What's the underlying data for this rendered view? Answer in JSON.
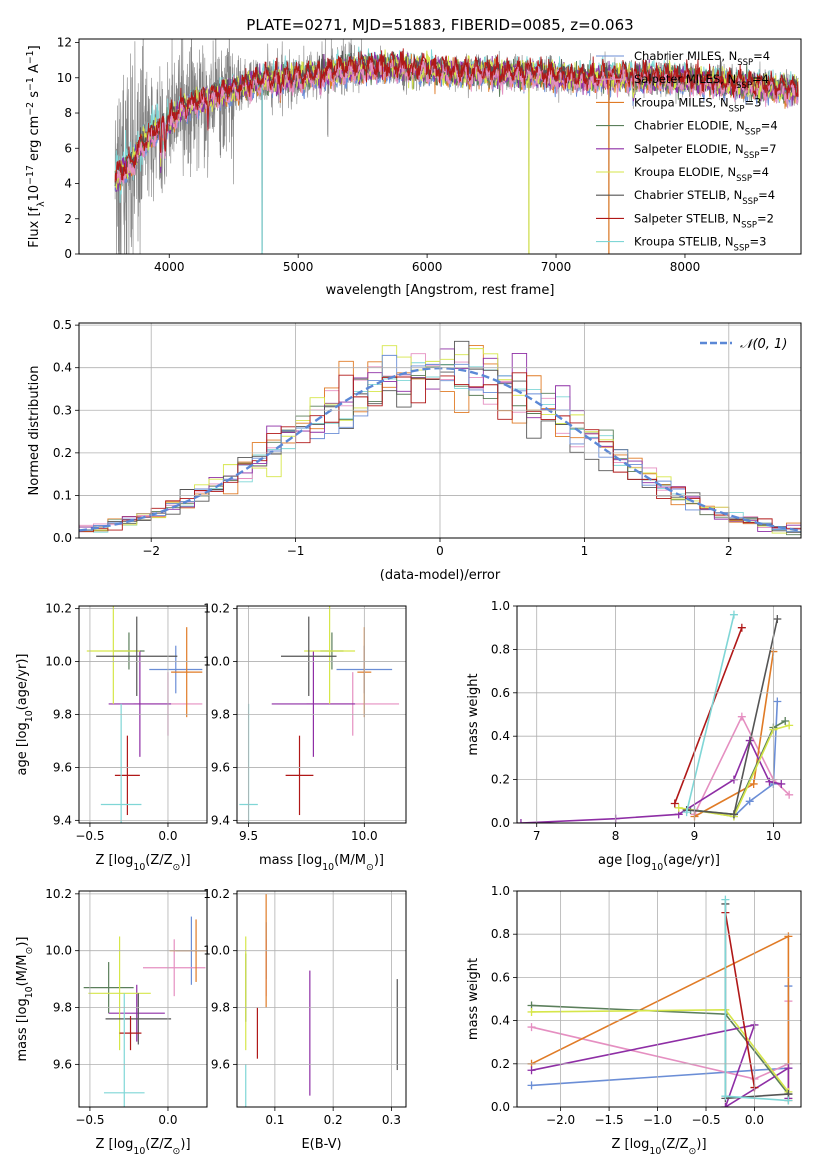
{
  "figure": {
    "title": "PLATE=0271, MJD=51883, FIBERID=0085, z=0.063"
  },
  "colors": {
    "Chabrier MILES": "#6b8ed6",
    "Salpeter MILES": "#e58fc1",
    "Kroupa MILES": "#e07b26",
    "Chabrier ELODIE": "#5b7f5b",
    "Salpeter ELODIE": "#8e2ea5",
    "Kroupa ELODIE": "#d6e64a",
    "Chabrier STELIB": "#555555",
    "Salpeter STELIB": "#b01818",
    "Kroupa STELIB": "#7fd6d6",
    "data": "#808080",
    "normal": "#5b88d6"
  },
  "chart_data": [
    {
      "id": "spectrum",
      "type": "line",
      "title": "PLATE=0271, MJD=51883, FIBERID=0085, z=0.063",
      "xlabel": "wavelength [Angstrom, rest frame]",
      "ylabel_parts": [
        "Flux [f",
        "λ",
        "10",
        "−17",
        " erg cm",
        "−2",
        " s",
        "−1",
        " A",
        "−1",
        "]"
      ],
      "xlim": [
        3300,
        8900
      ],
      "ylim": [
        0,
        12.2
      ],
      "xticks": [
        4000,
        5000,
        6000,
        7000,
        8000
      ],
      "yticks": [
        0,
        2,
        4,
        6,
        8,
        10,
        12
      ],
      "legend": "top-right",
      "legend_entries": [
        {
          "model": "Chabrier MILES",
          "label": "Chabrier MILES, N",
          "sub": "SSP",
          "suffix": "=4"
        },
        {
          "model": "Salpeter MILES",
          "label": "Salpeter MILES, N",
          "sub": "SSP",
          "suffix": "=4"
        },
        {
          "model": "Kroupa MILES",
          "label": "Kroupa MILES, N",
          "sub": "SSP",
          "suffix": "=3"
        },
        {
          "model": "Chabrier ELODIE",
          "label": "Chabrier ELODIE, N",
          "sub": "SSP",
          "suffix": "=4"
        },
        {
          "model": "Salpeter ELODIE",
          "label": "Salpeter ELODIE, N",
          "sub": "SSP",
          "suffix": "=7"
        },
        {
          "model": "Kroupa ELODIE",
          "label": "Kroupa ELODIE, N",
          "sub": "SSP",
          "suffix": "=4"
        },
        {
          "model": "Chabrier STELIB",
          "label": "Chabrier STELIB, N",
          "sub": "SSP",
          "suffix": "=4"
        },
        {
          "model": "Salpeter STELIB",
          "label": "Salpeter STELIB, N",
          "sub": "SSP",
          "suffix": "=2"
        },
        {
          "model": "Kroupa STELIB",
          "label": "Kroupa STELIB, N",
          "sub": "SSP",
          "suffix": "=3"
        }
      ],
      "data_range": [
        3580,
        8880
      ],
      "continuum_knots": [
        [
          3580,
          4.2
        ],
        [
          3650,
          4.8
        ],
        [
          3700,
          5.0
        ],
        [
          3800,
          6.4
        ],
        [
          3900,
          7.0
        ],
        [
          4000,
          7.5
        ],
        [
          4100,
          8.3
        ],
        [
          4300,
          8.8
        ],
        [
          4500,
          9.3
        ],
        [
          4700,
          9.8
        ],
        [
          5000,
          10.0
        ],
        [
          5200,
          10.3
        ],
        [
          5400,
          10.5
        ],
        [
          5700,
          10.6
        ],
        [
          6000,
          10.5
        ],
        [
          6200,
          10.3
        ],
        [
          6500,
          10.3
        ],
        [
          6800,
          10.2
        ],
        [
          7000,
          10.1
        ],
        [
          7200,
          9.9
        ],
        [
          7400,
          10.0
        ],
        [
          7600,
          10.1
        ],
        [
          7800,
          10.0
        ],
        [
          8000,
          9.9
        ],
        [
          8300,
          9.7
        ],
        [
          8600,
          9.5
        ],
        [
          8880,
          9.3
        ]
      ],
      "absorption_dips": [
        [
          3934,
          2.0
        ],
        [
          3968,
          1.8
        ],
        [
          4300,
          1.2
        ],
        [
          4861,
          0.7
        ],
        [
          5175,
          1.1
        ],
        [
          5890,
          0.8
        ],
        [
          6563,
          0.5
        ],
        [
          7600,
          1.2
        ]
      ],
      "emission_lines": [
        [
          4720,
          -10.5
        ],
        [
          5230,
          -3.6
        ],
        [
          5810,
          -0.9
        ],
        [
          6790,
          -10.5
        ],
        [
          7410,
          -10.6
        ]
      ]
    },
    {
      "id": "residuals",
      "type": "histogram",
      "xlabel": "(data-model)/error",
      "ylabel": "Normed distribution",
      "xlim": [
        -2.5,
        2.5
      ],
      "ylim": [
        0,
        0.505
      ],
      "xticks": [
        -2,
        -1,
        0,
        1,
        2
      ],
      "yticks": [
        0.0,
        0.1,
        0.2,
        0.3,
        0.4,
        0.5
      ],
      "legend": "top-right",
      "legend_label": "𝒩(0, 1)",
      "grid": true,
      "bin_width": 0.1
    },
    {
      "id": "age-vs-Z",
      "type": "errorbar",
      "xlabel_parts": [
        "Z [log",
        "10",
        "(Z/Z",
        "⊙",
        ")]"
      ],
      "ylabel_parts": [
        "age  [log",
        "10",
        "(age/yr)]"
      ],
      "xlim": [
        -0.57,
        0.25
      ],
      "ylim": [
        9.39,
        10.21
      ],
      "xticks": [
        -0.5,
        0.0
      ],
      "yticks": [
        9.4,
        9.6,
        9.8,
        10.0,
        10.2
      ],
      "grid": true,
      "points": [
        {
          "model": "Chabrier MILES",
          "x": 0.05,
          "y": 9.97,
          "xerr": 0.17,
          "yerr": 0.09
        },
        {
          "model": "Salpeter MILES",
          "x": 0.0,
          "y": 9.84,
          "xerr": 0.22,
          "yerr": 0.12
        },
        {
          "model": "Kroupa MILES",
          "x": 0.12,
          "y": 9.96,
          "xerr": 0.1,
          "yerr": 0.17
        },
        {
          "model": "Chabrier ELODIE",
          "x": -0.25,
          "y": 10.04,
          "xerr": 0.1,
          "yerr": 0.07
        },
        {
          "model": "Salpeter ELODIE",
          "x": -0.18,
          "y": 9.84,
          "xerr": 0.2,
          "yerr": 0.2
        },
        {
          "model": "Kroupa ELODIE",
          "x": -0.35,
          "y": 10.04,
          "xerr": 0.17,
          "yerr": 0.2
        },
        {
          "model": "Chabrier STELIB",
          "x": -0.2,
          "y": 10.02,
          "xerr": 0.26,
          "yerr": 0.15
        },
        {
          "model": "Salpeter STELIB",
          "x": -0.26,
          "y": 9.57,
          "xerr": 0.08,
          "yerr": 0.15
        },
        {
          "model": "Kroupa STELIB",
          "x": -0.3,
          "y": 9.46,
          "xerr": 0.13,
          "yerr": 0.38
        }
      ]
    },
    {
      "id": "age-vs-mass",
      "type": "errorbar",
      "xlabel_parts": [
        "mass [log",
        "10",
        "(M/M",
        "⊙",
        ")]"
      ],
      "xlim": [
        9.45,
        10.18
      ],
      "ylim": [
        9.39,
        10.21
      ],
      "xticks": [
        9.5,
        10.0
      ],
      "yticks": [
        9.4,
        9.6,
        9.8,
        10.0,
        10.2
      ],
      "grid": true,
      "points": [
        {
          "model": "Chabrier MILES",
          "x": 10.0,
          "y": 9.97,
          "xerr": 0.12,
          "yerr": 0.09
        },
        {
          "model": "Salpeter MILES",
          "x": 9.95,
          "y": 9.84,
          "xerr": 0.2,
          "yerr": 0.12
        },
        {
          "model": "Kroupa MILES",
          "x": 10.0,
          "y": 9.96,
          "xerr": 0.03,
          "yerr": 0.17
        },
        {
          "model": "Chabrier ELODIE",
          "x": 9.86,
          "y": 10.04,
          "xerr": 0.05,
          "yerr": 0.07
        },
        {
          "model": "Salpeter ELODIE",
          "x": 9.78,
          "y": 9.84,
          "xerr": 0.18,
          "yerr": 0.2
        },
        {
          "model": "Kroupa ELODIE",
          "x": 9.85,
          "y": 10.04,
          "xerr": 0.11,
          "yerr": 0.2
        },
        {
          "model": "Chabrier STELIB",
          "x": 9.76,
          "y": 10.02,
          "xerr": 0.12,
          "yerr": 0.15
        },
        {
          "model": "Salpeter STELIB",
          "x": 9.72,
          "y": 9.57,
          "xerr": 0.06,
          "yerr": 0.15
        },
        {
          "model": "Kroupa STELIB",
          "x": 9.5,
          "y": 9.46,
          "xerr": 0.04,
          "yerr": 0.38
        }
      ]
    },
    {
      "id": "weight-vs-age",
      "type": "line",
      "xlabel_parts": [
        "age  [log",
        "10",
        "(age/yr)]"
      ],
      "ylabel": "mass weight",
      "xlim": [
        6.75,
        10.35
      ],
      "ylim": [
        0,
        1.0
      ],
      "xticks": [
        7,
        8,
        9,
        10
      ],
      "yticks": [
        0.0,
        0.2,
        0.4,
        0.6,
        0.8,
        1.0
      ],
      "grid": true,
      "series": [
        {
          "model": "Chabrier MILES",
          "points": [
            [
              9.0,
              0.06
            ],
            [
              9.5,
              0.03
            ],
            [
              9.7,
              0.1
            ],
            [
              10.0,
              0.18
            ],
            [
              10.05,
              0.56
            ]
          ]
        },
        {
          "model": "Salpeter MILES",
          "points": [
            [
              9.0,
              0.04
            ],
            [
              9.6,
              0.49
            ],
            [
              10.0,
              0.2
            ],
            [
              10.2,
              0.13
            ]
          ]
        },
        {
          "model": "Kroupa MILES",
          "points": [
            [
              9.0,
              0.03
            ],
            [
              9.75,
              0.18
            ],
            [
              10.0,
              0.79
            ]
          ]
        },
        {
          "model": "Chabrier ELODIE",
          "points": [
            [
              8.95,
              0.06
            ],
            [
              9.5,
              0.04
            ],
            [
              10.0,
              0.44
            ],
            [
              10.15,
              0.47
            ]
          ]
        },
        {
          "model": "Salpeter ELODIE",
          "points": [
            [
              6.8,
              0.0
            ],
            [
              8.0,
              0.02
            ],
            [
              8.8,
              0.04
            ],
            [
              9.5,
              0.2
            ],
            [
              9.7,
              0.38
            ],
            [
              9.95,
              0.19
            ],
            [
              10.1,
              0.18
            ]
          ]
        },
        {
          "model": "Kroupa ELODIE",
          "points": [
            [
              8.8,
              0.07
            ],
            [
              9.5,
              0.03
            ],
            [
              10.0,
              0.43
            ],
            [
              10.2,
              0.45
            ]
          ]
        },
        {
          "model": "Chabrier STELIB",
          "points": [
            [
              8.9,
              0.06
            ],
            [
              9.5,
              0.04
            ],
            [
              10.05,
              0.94
            ]
          ]
        },
        {
          "model": "Salpeter STELIB",
          "points": [
            [
              8.75,
              0.09
            ],
            [
              9.6,
              0.9
            ]
          ]
        },
        {
          "model": "Kroupa STELIB",
          "points": [
            [
              8.9,
              0.05
            ],
            [
              9.5,
              0.96
            ]
          ]
        }
      ]
    },
    {
      "id": "mass-vs-Z",
      "type": "errorbar",
      "xlabel_parts": [
        "Z [log",
        "10",
        "(Z/Z",
        "⊙",
        ")]"
      ],
      "ylabel_parts": [
        "mass [log",
        "10",
        "(M/M",
        "⊙",
        ")]"
      ],
      "xlim": [
        -0.57,
        0.25
      ],
      "ylim": [
        9.45,
        10.21
      ],
      "xticks": [
        -0.5,
        0.0
      ],
      "yticks": [
        9.6,
        9.8,
        10.0,
        10.2
      ],
      "grid": true,
      "points": [
        {
          "model": "Chabrier MILES",
          "x": 0.15,
          "y": 10.0,
          "xerr": 0.1,
          "yerr": 0.12
        },
        {
          "model": "Salpeter MILES",
          "x": 0.04,
          "y": 9.94,
          "xerr": 0.2,
          "yerr": 0.1
        },
        {
          "model": "Kroupa MILES",
          "x": 0.18,
          "y": 10.0,
          "xerr": 0.17,
          "yerr": 0.11
        },
        {
          "model": "Chabrier ELODIE",
          "x": -0.38,
          "y": 9.87,
          "xerr": 0.16,
          "yerr": 0.09
        },
        {
          "model": "Salpeter ELODIE",
          "x": -0.2,
          "y": 9.78,
          "xerr": 0.18,
          "yerr": 0.1
        },
        {
          "model": "Kroupa ELODIE",
          "x": -0.31,
          "y": 9.85,
          "xerr": 0.2,
          "yerr": 0.2
        },
        {
          "model": "Chabrier STELIB",
          "x": -0.19,
          "y": 9.76,
          "xerr": 0.21,
          "yerr": 0.09
        },
        {
          "model": "Salpeter STELIB",
          "x": -0.24,
          "y": 9.71,
          "xerr": 0.07,
          "yerr": 0.06
        },
        {
          "model": "Kroupa STELIB",
          "x": -0.28,
          "y": 9.5,
          "xerr": 0.13,
          "yerr": 0.35
        }
      ]
    },
    {
      "id": "mass-vs-ebv",
      "type": "errorbar",
      "xlabel": "E(B-V)",
      "xlim": [
        0.035,
        0.325
      ],
      "ylim": [
        9.45,
        10.21
      ],
      "xticks": [
        0.1,
        0.2,
        0.3
      ],
      "yticks": [
        9.6,
        9.8,
        10.0,
        10.2
      ],
      "grid": true,
      "points": [
        {
          "model": "Chabrier MILES",
          "x": 0.085,
          "y": 10.0,
          "xerr": 0,
          "yerr": 0.1
        },
        {
          "model": "Salpeter MILES",
          "x": 0.085,
          "y": 9.94,
          "xerr": 0,
          "yerr": 0.1
        },
        {
          "model": "Kroupa MILES",
          "x": 0.085,
          "y": 10.0,
          "xerr": 0,
          "yerr": 0.2
        },
        {
          "model": "Chabrier ELODIE",
          "x": 0.05,
          "y": 9.87,
          "xerr": 0,
          "yerr": 0.12
        },
        {
          "model": "Salpeter ELODIE",
          "x": 0.16,
          "y": 9.71,
          "xerr": 0,
          "yerr": 0.22
        },
        {
          "model": "Kroupa ELODIE",
          "x": 0.05,
          "y": 9.85,
          "xerr": 0,
          "yerr": 0.2
        },
        {
          "model": "Chabrier STELIB",
          "x": 0.31,
          "y": 9.74,
          "xerr": 0,
          "yerr": 0.16
        },
        {
          "model": "Salpeter STELIB",
          "x": 0.07,
          "y": 9.71,
          "xerr": 0,
          "yerr": 0.09
        },
        {
          "model": "Kroupa STELIB",
          "x": 0.05,
          "y": 9.5,
          "xerr": 0,
          "yerr": 0.1
        }
      ]
    },
    {
      "id": "weight-vs-Z",
      "type": "line",
      "xlabel_parts": [
        "Z [log",
        "10",
        "(Z/Z",
        "⊙",
        ")]"
      ],
      "ylabel": "mass weight",
      "xlim": [
        -2.45,
        0.48
      ],
      "ylim": [
        0,
        1.0
      ],
      "xticks": [
        -2.0,
        -1.5,
        -1.0,
        -0.5,
        0.0
      ],
      "yticks": [
        0.0,
        0.2,
        0.4,
        0.6,
        0.8,
        1.0
      ],
      "grid": true,
      "series": [
        {
          "model": "Chabrier MILES",
          "points": [
            [
              -2.3,
              0.1
            ],
            [
              0.0,
              0.17
            ],
            [
              0.35,
              0.18
            ],
            [
              0.35,
              0.56
            ]
          ]
        },
        {
          "model": "Salpeter MILES",
          "points": [
            [
              -2.3,
              0.37
            ],
            [
              0.0,
              0.13
            ],
            [
              0.35,
              0.2
            ],
            [
              0.35,
              0.49
            ]
          ]
        },
        {
          "model": "Kroupa MILES",
          "points": [
            [
              -2.3,
              0.2
            ],
            [
              0.35,
              0.79
            ],
            [
              0.35,
              0.03
            ]
          ]
        },
        {
          "model": "Chabrier ELODIE",
          "points": [
            [
              -2.3,
              0.47
            ],
            [
              -0.3,
              0.43
            ],
            [
              0.35,
              0.06
            ]
          ]
        },
        {
          "model": "Salpeter ELODIE",
          "points": [
            [
              -2.3,
              0.17
            ],
            [
              0.0,
              0.38
            ],
            [
              -0.3,
              0.0
            ],
            [
              0.35,
              0.18
            ],
            [
              0.35,
              0.04
            ]
          ]
        },
        {
          "model": "Kroupa ELODIE",
          "points": [
            [
              -2.3,
              0.44
            ],
            [
              -0.3,
              0.45
            ],
            [
              0.35,
              0.07
            ]
          ]
        },
        {
          "model": "Chabrier STELIB",
          "points": [
            [
              -0.3,
              0.94
            ],
            [
              -0.3,
              0.04
            ],
            [
              0.35,
              0.06
            ]
          ]
        },
        {
          "model": "Salpeter STELIB",
          "points": [
            [
              -0.3,
              0.9
            ],
            [
              0.0,
              0.09
            ]
          ]
        },
        {
          "model": "Kroupa STELIB",
          "points": [
            [
              -0.3,
              0.96
            ],
            [
              -0.3,
              0.05
            ],
            [
              0.35,
              0.03
            ]
          ]
        }
      ]
    }
  ]
}
